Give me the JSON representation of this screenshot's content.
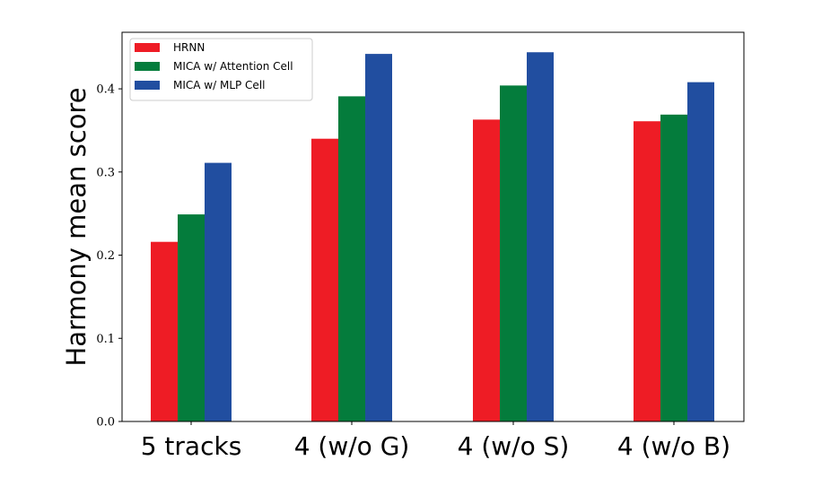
{
  "chart_data": {
    "type": "bar",
    "title": "",
    "xlabel": "",
    "ylabel": "Harmony mean score",
    "categories": [
      "5 tracks",
      "4 (w/o G)",
      "4 (w/o S)",
      "4 (w/o B)"
    ],
    "series": [
      {
        "name": "HRNN",
        "color": "#ee1c25",
        "values": [
          0.216,
          0.34,
          0.363,
          0.361
        ]
      },
      {
        "name": "MICA w/ Attention Cell",
        "color": "#047c3c",
        "values": [
          0.249,
          0.391,
          0.404,
          0.369
        ]
      },
      {
        "name": "MICA w/ MLP Cell",
        "color": "#214ea0",
        "values": [
          0.311,
          0.442,
          0.444,
          0.408
        ]
      }
    ],
    "ylim": [
      0,
      0.468
    ],
    "yticks": [
      0.0,
      0.1,
      0.2,
      0.3,
      0.4
    ],
    "ytick_labels": [
      "0.0",
      "0.1",
      "0.2",
      "0.3",
      "0.4"
    ],
    "grid": false,
    "legend_position": "top-left"
  }
}
